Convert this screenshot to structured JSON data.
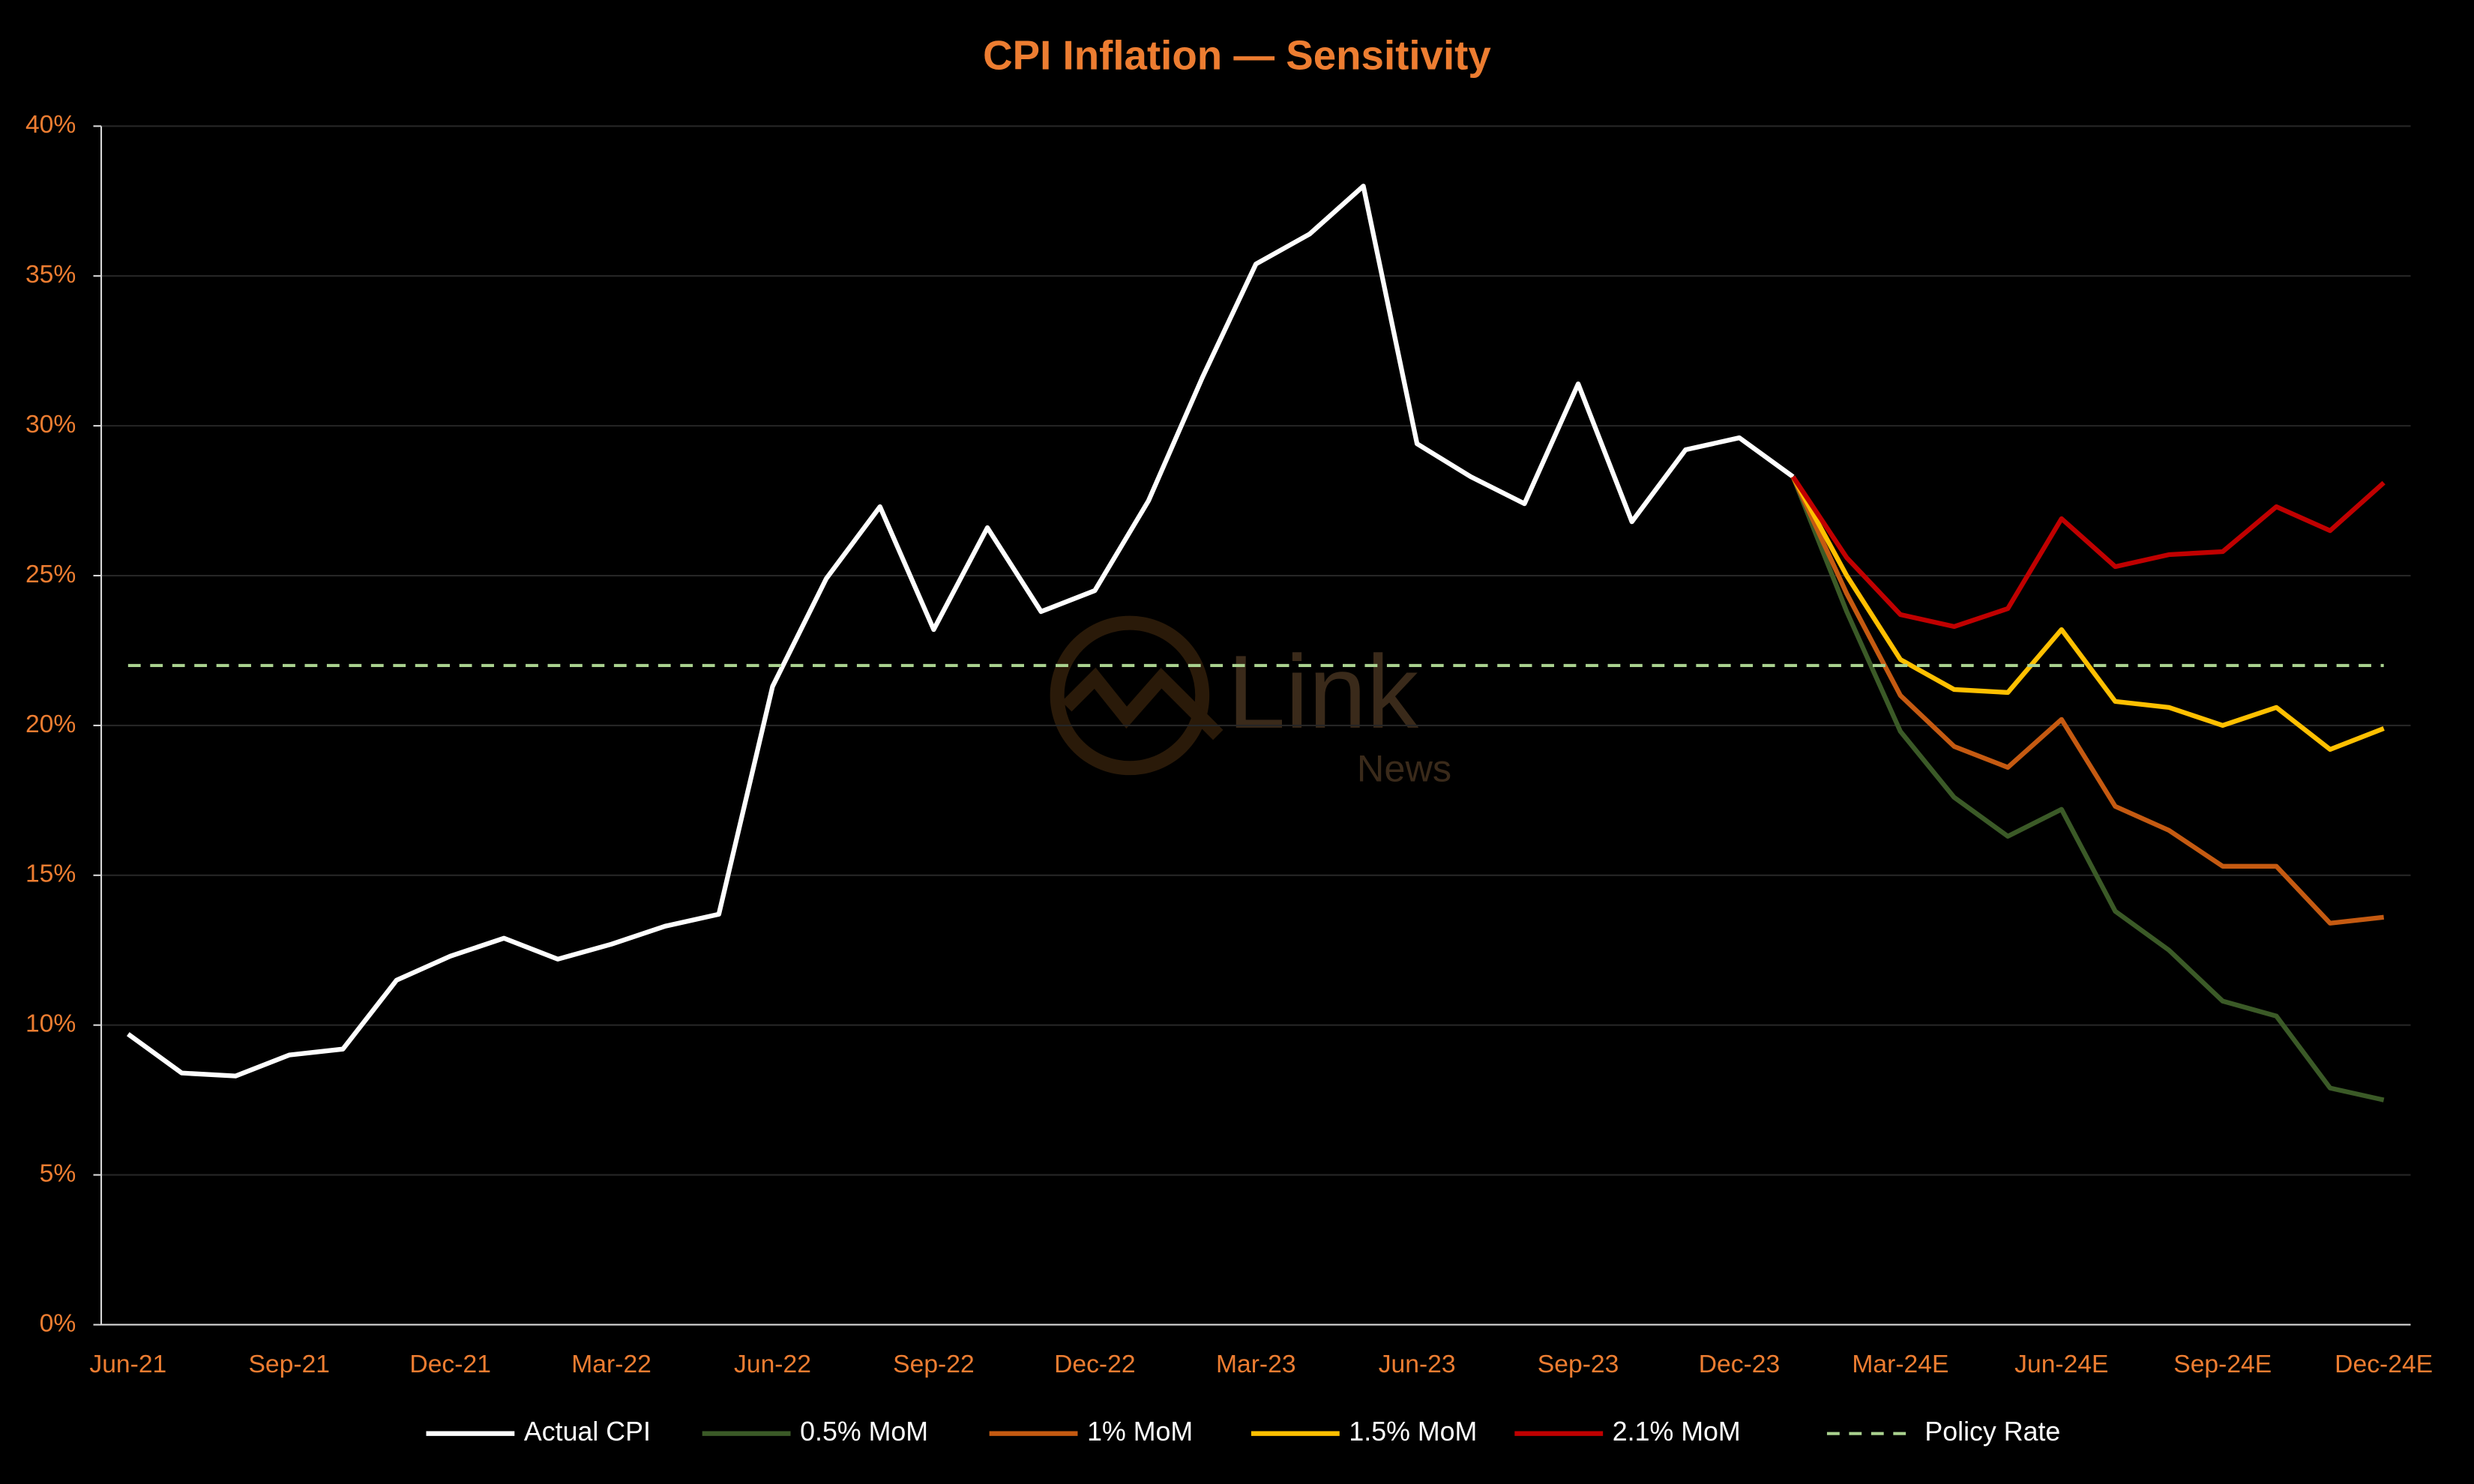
{
  "chart_data": {
    "type": "line",
    "title": "CPI Inflation — Sensitivity",
    "watermark": [
      "Link",
      "News"
    ],
    "categories": [
      "Jun-21",
      null,
      null,
      "Sep-21",
      null,
      null,
      "Dec-21",
      null,
      null,
      "Mar-22",
      null,
      null,
      "Jun-22",
      null,
      null,
      "Sep-22",
      null,
      null,
      "Dec-22",
      null,
      null,
      "Mar-23",
      null,
      null,
      "Jun-23",
      null,
      null,
      "Sep-23",
      null,
      null,
      "Dec-23",
      null,
      null,
      "Mar-24E",
      null,
      null,
      "Jun-24E",
      null,
      null,
      "Sep-24E",
      null,
      null,
      "Dec-24E"
    ],
    "series": [
      {
        "name": "Actual CPI",
        "color": "#ffffff",
        "values": [
          9.7,
          8.4,
          8.3,
          9.0,
          9.2,
          11.5,
          12.3,
          12.9,
          12.2,
          12.7,
          13.3,
          13.7,
          21.3,
          24.9,
          27.3,
          23.2,
          26.6,
          23.8,
          24.5,
          27.5,
          31.6,
          35.4,
          36.4,
          38.0,
          29.4,
          28.3,
          27.4,
          31.4,
          26.8,
          29.2,
          29.6,
          28.3,
          null,
          null,
          null,
          null,
          null,
          null,
          null,
          null,
          null,
          null,
          null
        ]
      },
      {
        "name": "0.5% MoM",
        "color": "#3b5a27",
        "values": [
          null,
          null,
          null,
          null,
          null,
          null,
          null,
          null,
          null,
          null,
          null,
          null,
          null,
          null,
          null,
          null,
          null,
          null,
          null,
          null,
          null,
          null,
          null,
          null,
          null,
          null,
          null,
          null,
          null,
          null,
          null,
          28.3,
          23.8,
          19.8,
          17.6,
          16.3,
          17.2,
          13.8,
          12.5,
          10.8,
          10.3,
          7.9,
          7.5
        ]
      },
      {
        "name": "1% MoM",
        "color": "#c55a11",
        "values": [
          null,
          null,
          null,
          null,
          null,
          null,
          null,
          null,
          null,
          null,
          null,
          null,
          null,
          null,
          null,
          null,
          null,
          null,
          null,
          null,
          null,
          null,
          null,
          null,
          null,
          null,
          null,
          null,
          null,
          null,
          null,
          28.3,
          24.4,
          21.0,
          19.3,
          18.6,
          20.2,
          17.3,
          16.5,
          15.3,
          15.3,
          13.4,
          13.6
        ]
      },
      {
        "name": "1.5% MoM",
        "color": "#ffc000",
        "values": [
          null,
          null,
          null,
          null,
          null,
          null,
          null,
          null,
          null,
          null,
          null,
          null,
          null,
          null,
          null,
          null,
          null,
          null,
          null,
          null,
          null,
          null,
          null,
          null,
          null,
          null,
          null,
          null,
          null,
          null,
          null,
          28.3,
          25.0,
          22.2,
          21.2,
          21.1,
          23.2,
          20.8,
          20.6,
          20.0,
          20.6,
          19.2,
          19.9
        ]
      },
      {
        "name": "2.1% MoM",
        "color": "#c00000",
        "values": [
          null,
          null,
          null,
          null,
          null,
          null,
          null,
          null,
          null,
          null,
          null,
          null,
          null,
          null,
          null,
          null,
          null,
          null,
          null,
          null,
          null,
          null,
          null,
          null,
          null,
          null,
          null,
          null,
          null,
          null,
          null,
          28.3,
          25.6,
          23.7,
          23.3,
          23.9,
          26.9,
          25.3,
          25.7,
          25.8,
          27.3,
          26.5,
          28.1
        ]
      },
      {
        "name": "Policy Rate",
        "color": "#a9d18e",
        "dash": true,
        "values": [
          22,
          22,
          22,
          22,
          22,
          22,
          22,
          22,
          22,
          22,
          22,
          22,
          22,
          22,
          22,
          22,
          22,
          22,
          22,
          22,
          22,
          22,
          22,
          22,
          22,
          22,
          22,
          22,
          22,
          22,
          22,
          22,
          22,
          22,
          22,
          22,
          22,
          22,
          22,
          22,
          22,
          22,
          22
        ]
      }
    ],
    "ylim": [
      0,
      40
    ],
    "yticks": [
      {
        "value": 0,
        "label": "0%"
      },
      {
        "value": 5,
        "label": "5%"
      },
      {
        "value": 10,
        "label": "10%"
      },
      {
        "value": 15,
        "label": "15%"
      },
      {
        "value": 20,
        "label": "20%"
      },
      {
        "value": 25,
        "label": "25%"
      },
      {
        "value": 30,
        "label": "30%"
      },
      {
        "value": 35,
        "label": "35%"
      },
      {
        "value": 40,
        "label": "40%"
      }
    ],
    "grid": true,
    "legend": "bottom"
  }
}
